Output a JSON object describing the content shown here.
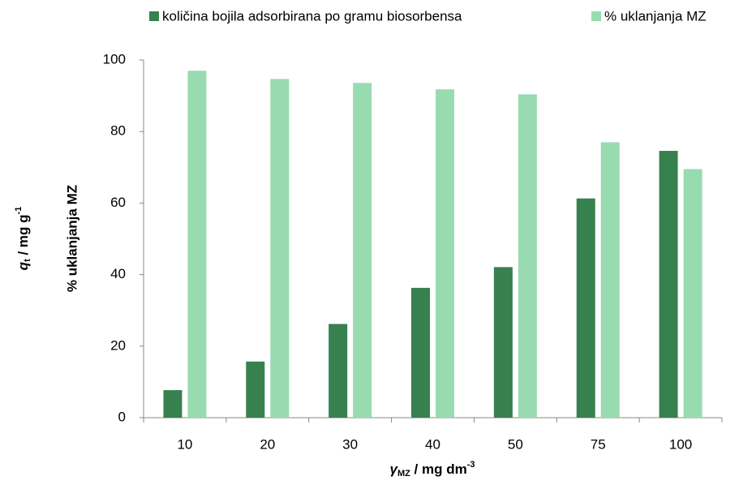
{
  "chart_data": {
    "type": "bar",
    "categories": [
      "10",
      "20",
      "30",
      "40",
      "50",
      "75",
      "100"
    ],
    "series": [
      {
        "name": "količina bojila adsorbirana po gramu biosorbensa",
        "color": "#37814f",
        "values": [
          7.7,
          15.7,
          26.2,
          36.3,
          42.1,
          61.3,
          74.6
        ]
      },
      {
        "name": "% uklanjanja MZ",
        "color": "#98dbb0",
        "values": [
          97,
          94.7,
          93.6,
          91.8,
          90.4,
          77,
          69.5
        ]
      }
    ],
    "ylim": [
      0,
      100
    ],
    "yticks": [
      0,
      20,
      40,
      60,
      80,
      100
    ],
    "ylabel_parts": [
      "q",
      "t",
      " / mg g",
      "-1"
    ],
    "ylabel2": "% uklanjanja MZ",
    "xlabel_parts": [
      "γ",
      "MZ",
      " / mg dm",
      "-3"
    ],
    "legend": "top"
  }
}
